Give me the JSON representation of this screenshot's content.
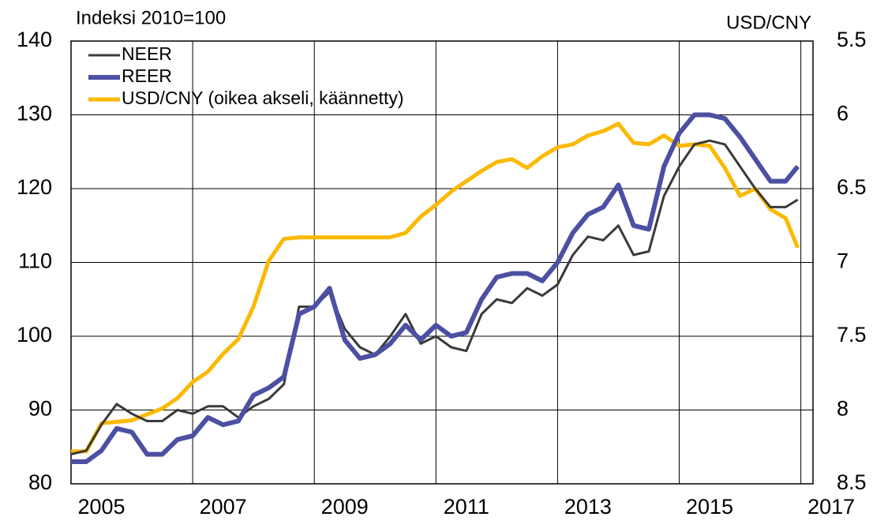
{
  "chart_data": {
    "type": "line",
    "y_axis_label": "Indeksi 2010=100",
    "y2_axis_label": "USD/CNY",
    "x": [
      2005.0,
      2005.25,
      2005.5,
      2005.75,
      2006.0,
      2006.25,
      2006.5,
      2006.75,
      2007.0,
      2007.25,
      2007.5,
      2007.75,
      2008.0,
      2008.25,
      2008.5,
      2008.75,
      2009.0,
      2009.25,
      2009.5,
      2009.75,
      2010.0,
      2010.25,
      2010.5,
      2010.75,
      2011.0,
      2011.25,
      2011.5,
      2011.75,
      2012.0,
      2012.25,
      2012.5,
      2012.75,
      2013.0,
      2013.25,
      2013.5,
      2013.75,
      2014.0,
      2014.25,
      2014.5,
      2014.75,
      2015.0,
      2015.25,
      2015.5,
      2015.75,
      2016.0,
      2016.25,
      2016.5,
      2016.75,
      2016.95
    ],
    "series": [
      {
        "name": "NEER",
        "color": "#3a3a3a",
        "width": 3,
        "values": [
          84,
          84.5,
          88,
          90.8,
          89.5,
          88.5,
          88.5,
          90,
          89.5,
          90.5,
          90.5,
          89,
          90.5,
          91.5,
          93.5,
          104,
          104,
          106,
          101,
          98.5,
          97.5,
          100,
          103,
          99,
          100,
          98.5,
          98,
          103,
          105,
          104.5,
          106.5,
          105.5,
          107,
          111,
          113.5,
          113,
          115,
          111,
          111.5,
          119,
          123,
          126,
          126.5,
          126,
          123,
          120,
          117.5,
          117.5,
          118.5
        ]
      },
      {
        "name": "REER",
        "color": "#4b50a2",
        "width": 6,
        "values": [
          83,
          83,
          84.5,
          87.5,
          87,
          84,
          84,
          86,
          86.5,
          89,
          88,
          88.5,
          92,
          93,
          94.5,
          103,
          104,
          106.5,
          99.5,
          97,
          97.5,
          99,
          101.5,
          99.5,
          101.5,
          100,
          100.5,
          105,
          108,
          108.5,
          108.5,
          107.5,
          110,
          114,
          116.5,
          117.5,
          120.5,
          115,
          114.5,
          123,
          127.5,
          130,
          130,
          129.5,
          127,
          124,
          121,
          121,
          123
        ]
      },
      {
        "name": "USD/CNY (oikea akseli, käännetty)",
        "color": "#fbb900",
        "width": 5,
        "axis": "y2",
        "values": [
          8.28,
          8.28,
          8.09,
          8.08,
          8.07,
          8.03,
          7.99,
          7.92,
          7.81,
          7.74,
          7.62,
          7.52,
          7.3,
          6.99,
          6.84,
          6.83,
          6.83,
          6.83,
          6.83,
          6.83,
          6.83,
          6.83,
          6.8,
          6.69,
          6.61,
          6.52,
          6.45,
          6.38,
          6.32,
          6.3,
          6.36,
          6.28,
          6.22,
          6.2,
          6.14,
          6.11,
          6.06,
          6.19,
          6.2,
          6.14,
          6.21,
          6.2,
          6.21,
          6.36,
          6.55,
          6.5,
          6.64,
          6.7,
          6.9
        ]
      }
    ],
    "xlim": [
      2005,
      2017.2
    ],
    "xticks": [
      2005,
      2007,
      2009,
      2011,
      2013,
      2015,
      2017
    ],
    "ylim": [
      80,
      140
    ],
    "yticks": [
      80,
      90,
      100,
      110,
      120,
      130,
      140
    ],
    "y2lim": [
      5.5,
      8.5
    ],
    "y2ticks": [
      5.5,
      6,
      6.5,
      7,
      7.5,
      8,
      8.5
    ],
    "y2_inverted": true,
    "grid": true,
    "legend": "top-left"
  }
}
